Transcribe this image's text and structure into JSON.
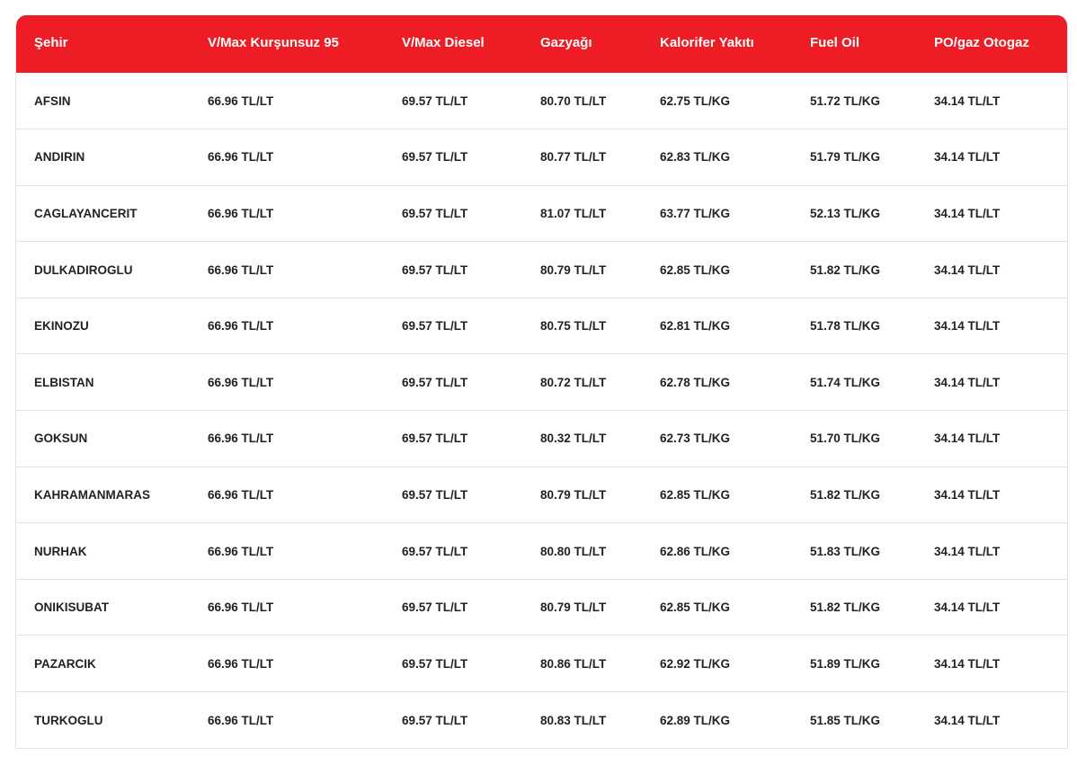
{
  "table": {
    "columns": [
      "Şehir",
      "V/Max Kurşunsuz 95",
      "V/Max Diesel",
      "Gazyağı",
      "Kalorifer Yakıtı",
      "Fuel Oil",
      "PO/gaz Otogaz"
    ],
    "rows": [
      [
        "AFSIN",
        "66.96 TL/LT",
        "69.57 TL/LT",
        "80.70 TL/LT",
        "62.75 TL/KG",
        "51.72 TL/KG",
        "34.14 TL/LT"
      ],
      [
        "ANDIRIN",
        "66.96 TL/LT",
        "69.57 TL/LT",
        "80.77 TL/LT",
        "62.83 TL/KG",
        "51.79 TL/KG",
        "34.14 TL/LT"
      ],
      [
        "CAGLAYANCERIT",
        "66.96 TL/LT",
        "69.57 TL/LT",
        "81.07 TL/LT",
        "63.77 TL/KG",
        "52.13 TL/KG",
        "34.14 TL/LT"
      ],
      [
        "DULKADIROGLU",
        "66.96 TL/LT",
        "69.57 TL/LT",
        "80.79 TL/LT",
        "62.85 TL/KG",
        "51.82 TL/KG",
        "34.14 TL/LT"
      ],
      [
        "EKINOZU",
        "66.96 TL/LT",
        "69.57 TL/LT",
        "80.75 TL/LT",
        "62.81 TL/KG",
        "51.78 TL/KG",
        "34.14 TL/LT"
      ],
      [
        "ELBISTAN",
        "66.96 TL/LT",
        "69.57 TL/LT",
        "80.72 TL/LT",
        "62.78 TL/KG",
        "51.74 TL/KG",
        "34.14 TL/LT"
      ],
      [
        "GOKSUN",
        "66.96 TL/LT",
        "69.57 TL/LT",
        "80.32 TL/LT",
        "62.73 TL/KG",
        "51.70 TL/KG",
        "34.14 TL/LT"
      ],
      [
        "KAHRAMANMARAS",
        "66.96 TL/LT",
        "69.57 TL/LT",
        "80.79 TL/LT",
        "62.85 TL/KG",
        "51.82 TL/KG",
        "34.14 TL/LT"
      ],
      [
        "NURHAK",
        "66.96 TL/LT",
        "69.57 TL/LT",
        "80.80 TL/LT",
        "62.86 TL/KG",
        "51.83 TL/KG",
        "34.14 TL/LT"
      ],
      [
        "ONIKISUBAT",
        "66.96 TL/LT",
        "69.57 TL/LT",
        "80.79 TL/LT",
        "62.85 TL/KG",
        "51.82 TL/KG",
        "34.14 TL/LT"
      ],
      [
        "PAZARCIK",
        "66.96 TL/LT",
        "69.57 TL/LT",
        "80.86 TL/LT",
        "62.92 TL/KG",
        "51.89 TL/KG",
        "34.14 TL/LT"
      ],
      [
        "TURKOGLU",
        "66.96 TL/LT",
        "69.57 TL/LT",
        "80.83 TL/LT",
        "62.89 TL/KG",
        "51.85 TL/KG",
        "34.14 TL/LT"
      ]
    ]
  },
  "colors": {
    "header_bg": "#ee1c25",
    "header_text": "#ffffff",
    "cell_text": "#222222",
    "border": "#e2e2e2"
  }
}
